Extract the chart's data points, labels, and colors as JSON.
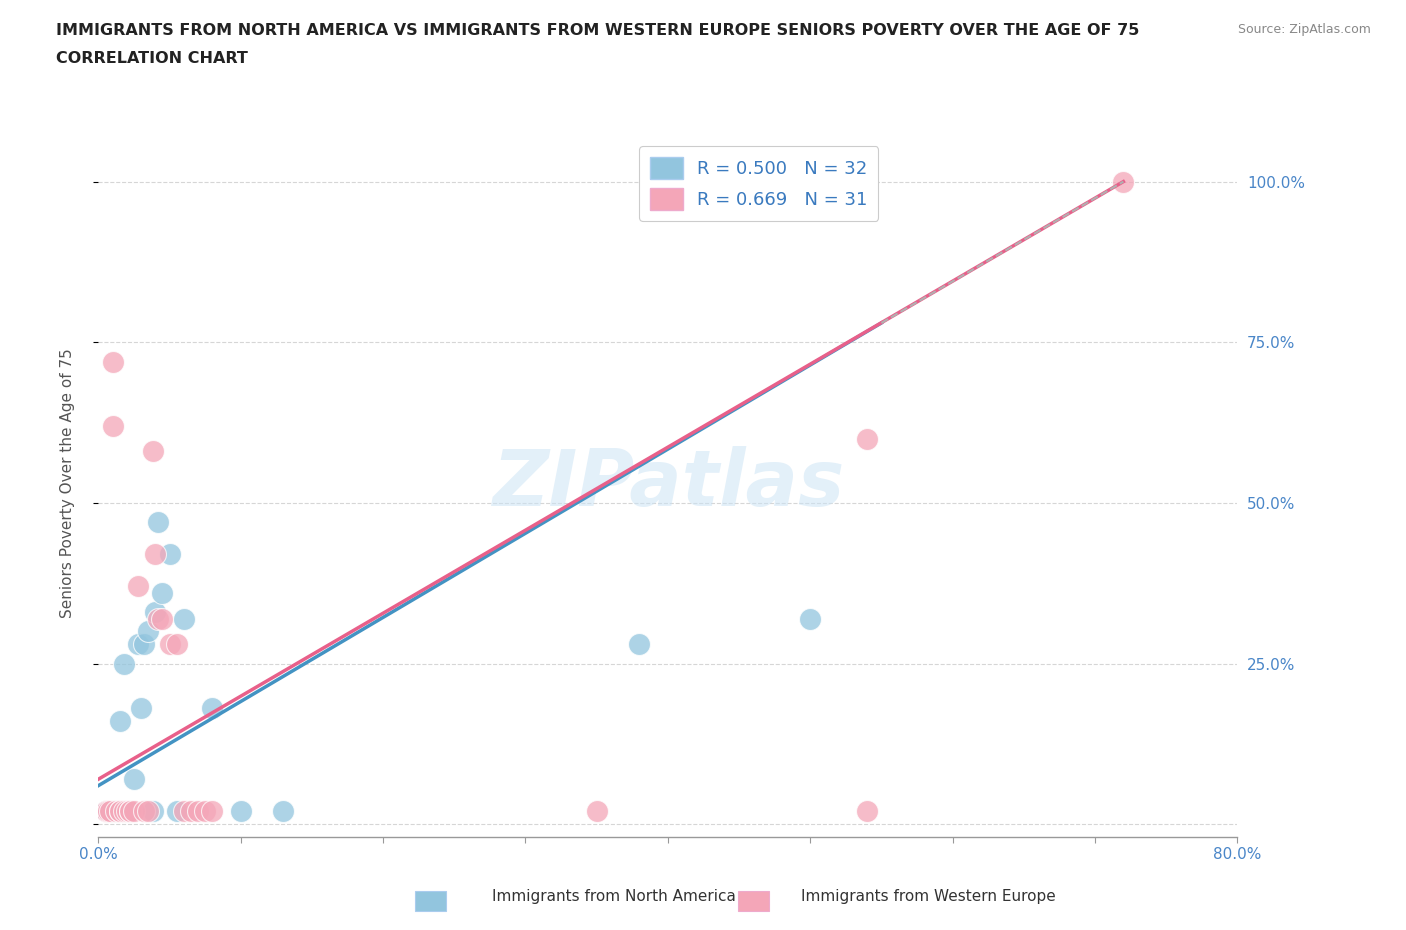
{
  "title_line1": "IMMIGRANTS FROM NORTH AMERICA VS IMMIGRANTS FROM WESTERN EUROPE SENIORS POVERTY OVER THE AGE OF 75",
  "title_line2": "CORRELATION CHART",
  "source": "Source: ZipAtlas.com",
  "ylabel": "Seniors Poverty Over the Age of 75",
  "xlim": [
    0,
    0.8
  ],
  "ylim": [
    -0.02,
    1.08
  ],
  "watermark": "ZIPatlas",
  "color_blue": "#92c5de",
  "color_pink": "#f4a6b8",
  "color_blue_line": "#4393c3",
  "color_pink_line": "#e8608a",
  "color_dashed": "#b0b0b0",
  "scatter_blue_x": [
    0.005,
    0.007,
    0.008,
    0.01,
    0.01,
    0.012,
    0.013,
    0.015,
    0.015,
    0.016,
    0.017,
    0.018,
    0.02,
    0.022,
    0.022,
    0.025,
    0.028,
    0.03,
    0.032,
    0.035,
    0.038,
    0.04,
    0.042,
    0.045,
    0.05,
    0.055,
    0.06,
    0.08,
    0.1,
    0.13,
    0.38,
    0.5
  ],
  "scatter_blue_y": [
    0.02,
    0.02,
    0.02,
    0.02,
    0.02,
    0.02,
    0.02,
    0.02,
    0.16,
    0.02,
    0.02,
    0.25,
    0.02,
    0.02,
    0.02,
    0.07,
    0.28,
    0.18,
    0.28,
    0.3,
    0.02,
    0.33,
    0.47,
    0.36,
    0.42,
    0.02,
    0.32,
    0.18,
    0.02,
    0.02,
    0.28,
    0.32
  ],
  "scatter_pink_x": [
    0.005,
    0.007,
    0.008,
    0.01,
    0.01,
    0.012,
    0.015,
    0.015,
    0.018,
    0.02,
    0.022,
    0.022,
    0.025,
    0.028,
    0.032,
    0.035,
    0.038,
    0.04,
    0.042,
    0.045,
    0.05,
    0.055,
    0.06,
    0.065,
    0.07,
    0.075,
    0.08,
    0.35,
    0.54,
    0.54,
    0.72
  ],
  "scatter_pink_y": [
    0.02,
    0.02,
    0.02,
    0.72,
    0.62,
    0.02,
    0.02,
    0.02,
    0.02,
    0.02,
    0.02,
    0.02,
    0.02,
    0.37,
    0.02,
    0.02,
    0.58,
    0.42,
    0.32,
    0.32,
    0.28,
    0.28,
    0.02,
    0.02,
    0.02,
    0.02,
    0.02,
    0.02,
    0.6,
    0.02,
    1.0
  ],
  "blue_line_x": [
    0.0,
    0.55
  ],
  "blue_line_y": [
    0.06,
    0.78
  ],
  "pink_line_x": [
    0.0,
    0.72
  ],
  "pink_line_y": [
    0.07,
    1.0
  ],
  "dashed_line_x": [
    0.55,
    0.72
  ],
  "dashed_line_y": [
    0.78,
    1.0
  ],
  "background_color": "#ffffff",
  "grid_color": "#cccccc"
}
